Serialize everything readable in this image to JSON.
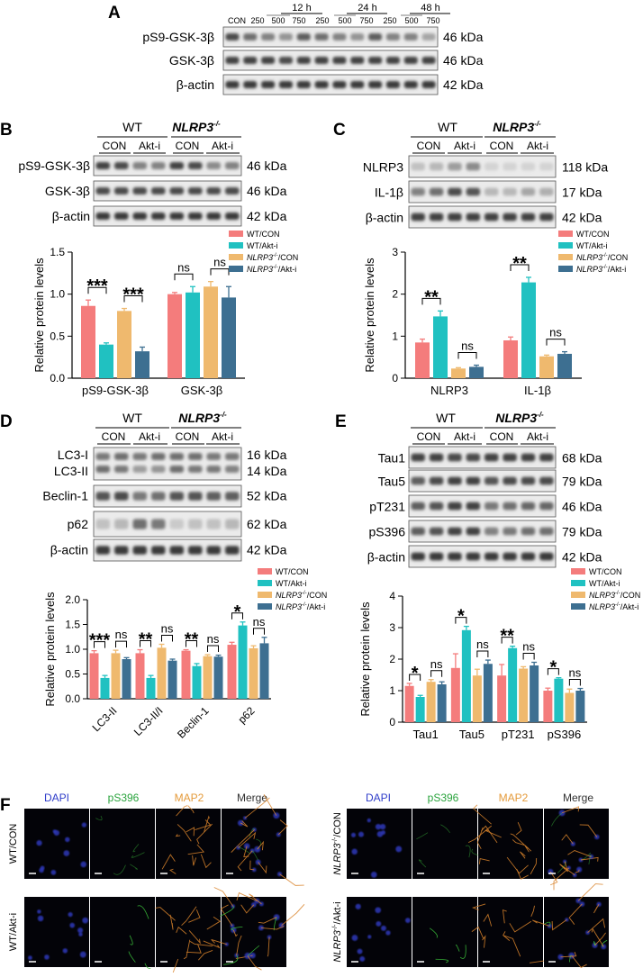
{
  "colors": {
    "wt_con": "#f47c7c",
    "wt_akt": "#20c1c1",
    "ko_con": "#efb96e",
    "ko_akt": "#3d6f91"
  },
  "legend": [
    {
      "key": "wt_con",
      "label": "WT/CON"
    },
    {
      "key": "wt_akt",
      "label": "WT/Akt-i"
    },
    {
      "key": "ko_con",
      "label": "NLRP3-/-/CON"
    },
    {
      "key": "ko_akt",
      "label": "NLRP3-/-/Akt-i"
    }
  ],
  "common": {
    "wt": "WT",
    "ko": "NLRP3",
    "ko_sup": "-/-",
    "con": "CON",
    "akti": "Akt-i",
    "ylabel": "Relative protein levels",
    "ns": "ns"
  },
  "panel_a": {
    "letter": "A",
    "groups": [
      {
        "label": "12 h"
      },
      {
        "label": "24 h"
      },
      {
        "label": "48 h"
      }
    ],
    "con": "CON",
    "doses": [
      "250",
      "500",
      "750"
    ],
    "rows": [
      {
        "label": "pS9-GSK-3β",
        "kda": "46 kDa"
      },
      {
        "label": "GSK-3β",
        "kda": "46 kDa"
      },
      {
        "label": "β-actin",
        "kda": "42 kDa"
      }
    ]
  },
  "panel_b": {
    "letter": "B",
    "rows": [
      {
        "label": "pS9-GSK-3β",
        "kda": "46 kDa"
      },
      {
        "label": "GSK-3β",
        "kda": "46 kDa"
      },
      {
        "label": "β-actin",
        "kda": "42 kDa"
      }
    ],
    "sig": [
      "***",
      "***",
      "ns",
      "ns"
    ]
  },
  "panel_c": {
    "letter": "C",
    "rows": [
      {
        "label": "NLRP3",
        "kda": "118 kDa"
      },
      {
        "label": "IL-1β",
        "kda": "17 kDa"
      },
      {
        "label": "β-actin",
        "kda": "42 kDa"
      }
    ],
    "sig": [
      "**",
      "ns",
      "**",
      "ns"
    ]
  },
  "panel_d": {
    "letter": "D",
    "rows": [
      {
        "label": "LC3-I",
        "kda": "16 kDa"
      },
      {
        "label": "LC3-II",
        "kda": "14 kDa"
      },
      {
        "label": "Beclin-1",
        "kda": "52 kDa"
      },
      {
        "label": "p62",
        "kda": "62 kDa"
      },
      {
        "label": "β-actin",
        "kda": "42 kDa"
      }
    ],
    "sig": [
      "***",
      "ns",
      "**",
      "ns",
      "**",
      "ns",
      "*",
      "ns"
    ]
  },
  "panel_e": {
    "letter": "E",
    "rows": [
      {
        "label": "Tau1",
        "kda": "68 kDa"
      },
      {
        "label": "Tau5",
        "kda": "79 kDa"
      },
      {
        "label": "pT231",
        "kda": "46 kDa"
      },
      {
        "label": "pS396",
        "kda": "79 kDa"
      },
      {
        "label": "β-actin",
        "kda": "42 kDa"
      }
    ],
    "sig": [
      "*",
      "ns",
      "*",
      "ns",
      "**",
      "ns",
      "*",
      "ns"
    ]
  },
  "panel_f": {
    "letter": "F",
    "channels": [
      "DAPI",
      "pS396",
      "MAP2",
      "Merge"
    ],
    "row_labels_left": [
      "WT/CON",
      "WT/Akt-i"
    ],
    "row_labels_right": [
      "NLRP3-/-/CON",
      "NLRP3-/-/Akt-i"
    ]
  },
  "chart_data": [
    {
      "type": "bar",
      "id": "B",
      "title": "",
      "ylabel": "Relative protein levels",
      "ylim": [
        0,
        1.5
      ],
      "yticks": [
        "0.0",
        "0.5",
        "1.0",
        "1.5"
      ],
      "categories": [
        "pS9-GSK-3β",
        "GSK-3β"
      ],
      "series": [
        {
          "name": "WT/CON",
          "values": [
            0.86,
            1.0
          ],
          "errors": [
            0.07,
            0.02
          ]
        },
        {
          "name": "WT/Akt-i",
          "values": [
            0.4,
            1.02
          ],
          "errors": [
            0.02,
            0.07
          ]
        },
        {
          "name": "NLRP3-/-/CON",
          "values": [
            0.8,
            1.09
          ],
          "errors": [
            0.03,
            0.06
          ]
        },
        {
          "name": "NLRP3-/-/Akt-i",
          "values": [
            0.32,
            0.96
          ],
          "errors": [
            0.05,
            0.13
          ]
        }
      ]
    },
    {
      "type": "bar",
      "id": "C",
      "title": "",
      "ylabel": "Relative protein levels",
      "ylim": [
        0,
        3
      ],
      "yticks": [
        "0",
        "1",
        "2",
        "3"
      ],
      "categories": [
        "NLRP3",
        "IL-1β"
      ],
      "series": [
        {
          "name": "WT/CON",
          "values": [
            0.85,
            0.9
          ],
          "errors": [
            0.08,
            0.08
          ]
        },
        {
          "name": "WT/Akt-i",
          "values": [
            1.47,
            2.28
          ],
          "errors": [
            0.13,
            0.12
          ]
        },
        {
          "name": "NLRP3-/-/CON",
          "values": [
            0.23,
            0.52
          ],
          "errors": [
            0.02,
            0.03
          ]
        },
        {
          "name": "NLRP3-/-/Akt-i",
          "values": [
            0.27,
            0.58
          ],
          "errors": [
            0.04,
            0.05
          ]
        }
      ]
    },
    {
      "type": "bar",
      "id": "D",
      "title": "",
      "ylabel": "Relative protein levels",
      "ylim": [
        0,
        2.0
      ],
      "yticks": [
        "0.0",
        "0.5",
        "1.0",
        "1.5",
        "2.0"
      ],
      "categories": [
        "LC3-II",
        "LC3-II/I",
        "Beclin-1",
        "p62"
      ],
      "series": [
        {
          "name": "WT/CON",
          "values": [
            0.92,
            0.92,
            0.97,
            1.09
          ],
          "errors": [
            0.05,
            0.07,
            0.02,
            0.05
          ]
        },
        {
          "name": "WT/Akt-i",
          "values": [
            0.42,
            0.42,
            0.66,
            1.48
          ],
          "errors": [
            0.05,
            0.05,
            0.05,
            0.07
          ]
        },
        {
          "name": "NLRP3-/-/CON",
          "values": [
            0.92,
            1.03,
            0.86,
            1.02
          ],
          "errors": [
            0.06,
            0.07,
            0.03,
            0.05
          ]
        },
        {
          "name": "NLRP3-/-/Akt-i",
          "values": [
            0.8,
            0.77,
            0.85,
            1.12
          ],
          "errors": [
            0.03,
            0.03,
            0.03,
            0.12
          ]
        }
      ]
    },
    {
      "type": "bar",
      "id": "E",
      "title": "",
      "ylabel": "Relative protein levels",
      "ylim": [
        0,
        4
      ],
      "yticks": [
        "0",
        "1",
        "2",
        "3",
        "4"
      ],
      "categories": [
        "Tau1",
        "Tau5",
        "pT231",
        "pS396"
      ],
      "series": [
        {
          "name": "WT/CON",
          "values": [
            1.15,
            1.72,
            1.48,
            1.0
          ],
          "errors": [
            0.08,
            0.45,
            0.35,
            0.08
          ]
        },
        {
          "name": "WT/Akt-i",
          "values": [
            0.8,
            2.92,
            2.35,
            1.38
          ],
          "errors": [
            0.05,
            0.12,
            0.06,
            0.03
          ]
        },
        {
          "name": "NLRP3-/-/CON",
          "values": [
            1.28,
            1.48,
            1.7,
            0.93
          ],
          "errors": [
            0.07,
            0.2,
            0.06,
            0.12
          ]
        },
        {
          "name": "NLRP3-/-/Akt-i",
          "values": [
            1.2,
            1.85,
            1.8,
            1.0
          ],
          "errors": [
            0.08,
            0.12,
            0.1,
            0.07
          ]
        }
      ]
    }
  ]
}
